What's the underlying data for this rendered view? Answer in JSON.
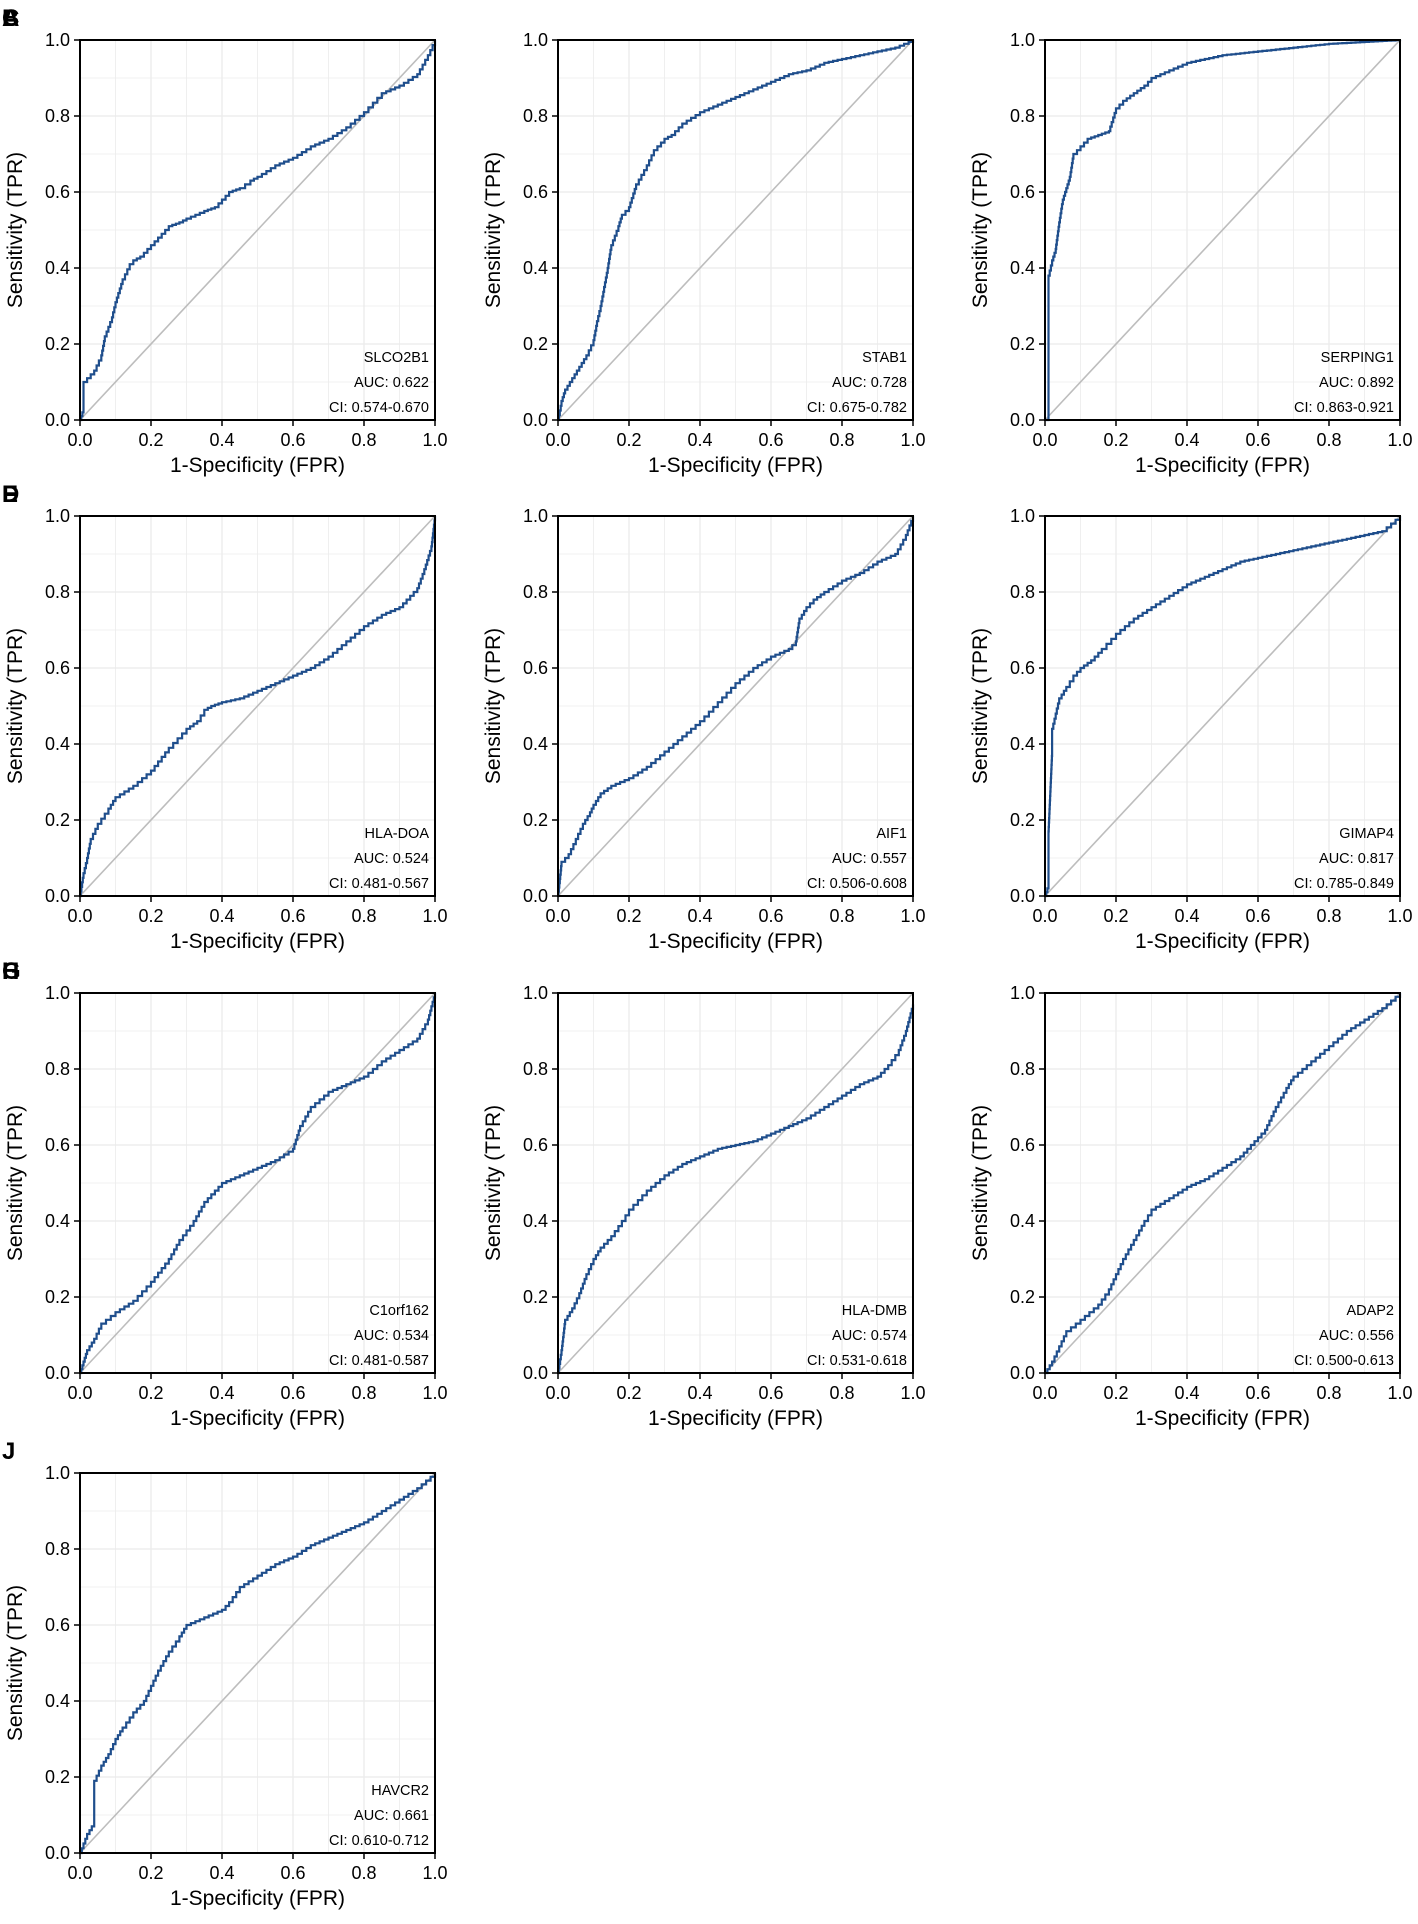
{
  "figure": {
    "type": "roc_grid",
    "colors": {
      "roc": "#1f4e8c",
      "diagonal": "#bdbdbd",
      "grid": "#ebebeb",
      "frame": "#000000"
    }
  },
  "chart_data": [
    {
      "panel": "A",
      "type": "line",
      "title": "SLCO2B1",
      "auc_label": "AUC: 0.622",
      "ci_label": "CI: 0.574-0.670",
      "xlabel": "1-Specificity (FPR)",
      "ylabel": "Sensitivity (TPR)",
      "xlim": [
        0,
        1
      ],
      "ylim": [
        0,
        1
      ],
      "x_ticks": [
        "0.0",
        "0.2",
        "0.4",
        "0.6",
        "0.8",
        "1.0"
      ],
      "y_ticks": [
        "0.0",
        "0.2",
        "0.4",
        "0.6",
        "0.8",
        "1.0"
      ],
      "series": [
        {
          "name": "ROC",
          "x": [
            0,
            0.01,
            0.01,
            0.04,
            0.06,
            0.07,
            0.09,
            0.1,
            0.12,
            0.14,
            0.15,
            0.17,
            0.2,
            0.22,
            0.25,
            0.28,
            0.3,
            0.35,
            0.38,
            0.4,
            0.42,
            0.45,
            0.48,
            0.5,
            0.55,
            0.6,
            0.65,
            0.7,
            0.75,
            0.8,
            0.85,
            0.9,
            0.95,
            0.98,
            1.0
          ],
          "y": [
            0,
            0.03,
            0.1,
            0.13,
            0.17,
            0.22,
            0.27,
            0.31,
            0.37,
            0.41,
            0.42,
            0.43,
            0.46,
            0.48,
            0.51,
            0.52,
            0.53,
            0.55,
            0.56,
            0.58,
            0.6,
            0.61,
            0.63,
            0.64,
            0.67,
            0.69,
            0.72,
            0.74,
            0.77,
            0.81,
            0.86,
            0.88,
            0.91,
            0.96,
            1.0
          ]
        },
        {
          "name": "Reference",
          "x": [
            0,
            1
          ],
          "y": [
            0,
            1
          ]
        }
      ]
    },
    {
      "panel": "B",
      "type": "line",
      "title": "STAB1",
      "auc_label": "AUC: 0.728",
      "ci_label": "CI: 0.675-0.782",
      "xlabel": "1-Specificity (FPR)",
      "ylabel": "Sensitivity (TPR)",
      "xlim": [
        0,
        1
      ],
      "ylim": [
        0,
        1
      ],
      "x_ticks": [
        "0.0",
        "0.2",
        "0.4",
        "0.6",
        "0.8",
        "1.0"
      ],
      "y_ticks": [
        "0.0",
        "0.2",
        "0.4",
        "0.6",
        "0.8",
        "1.0"
      ],
      "series": [
        {
          "name": "ROC",
          "x": [
            0,
            0.01,
            0.02,
            0.04,
            0.06,
            0.08,
            0.1,
            0.11,
            0.12,
            0.13,
            0.14,
            0.15,
            0.17,
            0.18,
            0.2,
            0.22,
            0.25,
            0.27,
            0.3,
            0.32,
            0.35,
            0.4,
            0.45,
            0.5,
            0.55,
            0.6,
            0.65,
            0.7,
            0.75,
            0.8,
            0.85,
            0.9,
            0.95,
            1.0
          ],
          "y": [
            0,
            0.05,
            0.08,
            0.11,
            0.14,
            0.17,
            0.21,
            0.26,
            0.3,
            0.35,
            0.4,
            0.46,
            0.51,
            0.54,
            0.56,
            0.62,
            0.67,
            0.71,
            0.74,
            0.75,
            0.78,
            0.81,
            0.83,
            0.85,
            0.87,
            0.89,
            0.91,
            0.92,
            0.94,
            0.95,
            0.96,
            0.97,
            0.98,
            1.0
          ]
        },
        {
          "name": "Reference",
          "x": [
            0,
            1
          ],
          "y": [
            0,
            1
          ]
        }
      ]
    },
    {
      "panel": "C",
      "type": "line",
      "title": "SERPING1",
      "auc_label": "AUC: 0.892",
      "ci_label": "CI: 0.863-0.921",
      "xlabel": "1-Specificity (FPR)",
      "ylabel": "Sensitivity (TPR)",
      "xlim": [
        0,
        1
      ],
      "ylim": [
        0,
        1
      ],
      "x_ticks": [
        "0.0",
        "0.2",
        "0.4",
        "0.6",
        "0.8",
        "1.0"
      ],
      "y_ticks": [
        "0.0",
        "0.2",
        "0.4",
        "0.6",
        "0.8",
        "1.0"
      ],
      "series": [
        {
          "name": "ROC",
          "x": [
            0,
            0.01,
            0.01,
            0.02,
            0.03,
            0.04,
            0.05,
            0.06,
            0.07,
            0.08,
            0.09,
            0.1,
            0.12,
            0.15,
            0.18,
            0.2,
            0.22,
            0.25,
            0.28,
            0.3,
            0.35,
            0.4,
            0.45,
            0.5,
            0.6,
            0.7,
            0.8,
            0.9,
            1.0
          ],
          "y": [
            0,
            0.01,
            0.38,
            0.42,
            0.45,
            0.52,
            0.58,
            0.61,
            0.64,
            0.7,
            0.71,
            0.72,
            0.74,
            0.75,
            0.76,
            0.82,
            0.84,
            0.86,
            0.88,
            0.9,
            0.92,
            0.94,
            0.95,
            0.96,
            0.97,
            0.98,
            0.99,
            0.995,
            1.0
          ]
        },
        {
          "name": "Reference",
          "x": [
            0,
            1
          ],
          "y": [
            0,
            1
          ]
        }
      ]
    },
    {
      "panel": "D",
      "type": "line",
      "title": "HLA-DOA",
      "auc_label": "AUC: 0.524",
      "ci_label": "CI: 0.481-0.567",
      "xlabel": "1-Specificity (FPR)",
      "ylabel": "Sensitivity (TPR)",
      "xlim": [
        0,
        1
      ],
      "ylim": [
        0,
        1
      ],
      "x_ticks": [
        "0.0",
        "0.2",
        "0.4",
        "0.6",
        "0.8",
        "1.0"
      ],
      "y_ticks": [
        "0.0",
        "0.2",
        "0.4",
        "0.6",
        "0.8",
        "1.0"
      ],
      "series": [
        {
          "name": "ROC",
          "x": [
            0,
            0.01,
            0.02,
            0.03,
            0.05,
            0.08,
            0.1,
            0.15,
            0.2,
            0.25,
            0.3,
            0.33,
            0.35,
            0.37,
            0.4,
            0.45,
            0.5,
            0.55,
            0.6,
            0.65,
            0.7,
            0.75,
            0.8,
            0.85,
            0.9,
            0.93,
            0.95,
            0.97,
            0.99,
            1.0
          ],
          "y": [
            0,
            0.06,
            0.1,
            0.15,
            0.19,
            0.23,
            0.26,
            0.29,
            0.33,
            0.39,
            0.44,
            0.46,
            0.49,
            0.5,
            0.51,
            0.52,
            0.54,
            0.56,
            0.58,
            0.6,
            0.63,
            0.67,
            0.71,
            0.74,
            0.76,
            0.79,
            0.81,
            0.86,
            0.92,
            1.0
          ]
        },
        {
          "name": "Reference",
          "x": [
            0,
            1
          ],
          "y": [
            0,
            1
          ]
        }
      ]
    },
    {
      "panel": "E",
      "type": "line",
      "title": "AIF1",
      "auc_label": "AUC: 0.557",
      "ci_label": "CI: 0.506-0.608",
      "xlabel": "1-Specificity (FPR)",
      "ylabel": "Sensitivity (TPR)",
      "xlim": [
        0,
        1
      ],
      "ylim": [
        0,
        1
      ],
      "x_ticks": [
        "0.0",
        "0.2",
        "0.4",
        "0.6",
        "0.8",
        "1.0"
      ],
      "y_ticks": [
        "0.0",
        "0.2",
        "0.4",
        "0.6",
        "0.8",
        "1.0"
      ],
      "series": [
        {
          "name": "ROC",
          "x": [
            0,
            0.01,
            0.03,
            0.05,
            0.07,
            0.09,
            0.1,
            0.12,
            0.15,
            0.2,
            0.25,
            0.3,
            0.35,
            0.4,
            0.45,
            0.5,
            0.55,
            0.6,
            0.65,
            0.67,
            0.68,
            0.7,
            0.72,
            0.75,
            0.8,
            0.85,
            0.9,
            0.95,
            0.98,
            1.0
          ],
          "y": [
            0,
            0.09,
            0.11,
            0.15,
            0.19,
            0.22,
            0.24,
            0.27,
            0.29,
            0.31,
            0.34,
            0.38,
            0.42,
            0.46,
            0.51,
            0.56,
            0.6,
            0.63,
            0.65,
            0.67,
            0.73,
            0.76,
            0.78,
            0.8,
            0.83,
            0.85,
            0.88,
            0.9,
            0.95,
            1.0
          ]
        },
        {
          "name": "Reference",
          "x": [
            0,
            1
          ],
          "y": [
            0,
            1
          ]
        }
      ]
    },
    {
      "panel": "F",
      "type": "line",
      "title": "GIMAP4",
      "auc_label": "AUC: 0.817",
      "ci_label": "CI: 0.785-0.849",
      "xlabel": "1-Specificity (FPR)",
      "ylabel": "Sensitivity (TPR)",
      "xlim": [
        0,
        1
      ],
      "ylim": [
        0,
        1
      ],
      "x_ticks": [
        "0.0",
        "0.2",
        "0.4",
        "0.6",
        "0.8",
        "1.0"
      ],
      "y_ticks": [
        "0.0",
        "0.2",
        "0.4",
        "0.6",
        "0.8",
        "1.0"
      ],
      "series": [
        {
          "name": "ROC",
          "x": [
            0,
            0.01,
            0.01,
            0.02,
            0.02,
            0.03,
            0.04,
            0.06,
            0.08,
            0.1,
            0.13,
            0.16,
            0.2,
            0.25,
            0.3,
            0.35,
            0.4,
            0.45,
            0.5,
            0.55,
            0.6,
            0.65,
            0.7,
            0.75,
            0.8,
            0.85,
            0.9,
            0.95,
            1.0
          ],
          "y": [
            0,
            0.03,
            0.17,
            0.38,
            0.44,
            0.48,
            0.52,
            0.55,
            0.58,
            0.6,
            0.62,
            0.65,
            0.69,
            0.73,
            0.76,
            0.79,
            0.82,
            0.84,
            0.86,
            0.88,
            0.89,
            0.9,
            0.91,
            0.92,
            0.93,
            0.94,
            0.95,
            0.96,
            1.0
          ]
        },
        {
          "name": "Reference",
          "x": [
            0,
            1
          ],
          "y": [
            0,
            1
          ]
        }
      ]
    },
    {
      "panel": "G",
      "type": "line",
      "title": "C1orf162",
      "auc_label": "AUC: 0.534",
      "ci_label": "CI: 0.481-0.587",
      "xlabel": "1-Specificity (FPR)",
      "ylabel": "Sensitivity (TPR)",
      "xlim": [
        0,
        1
      ],
      "ylim": [
        0,
        1
      ],
      "x_ticks": [
        "0.0",
        "0.2",
        "0.4",
        "0.6",
        "0.8",
        "1.0"
      ],
      "y_ticks": [
        "0.0",
        "0.2",
        "0.4",
        "0.6",
        "0.8",
        "1.0"
      ],
      "series": [
        {
          "name": "ROC",
          "x": [
            0,
            0.01,
            0.02,
            0.04,
            0.06,
            0.1,
            0.15,
            0.2,
            0.25,
            0.28,
            0.32,
            0.35,
            0.38,
            0.4,
            0.45,
            0.5,
            0.55,
            0.6,
            0.62,
            0.65,
            0.7,
            0.75,
            0.8,
            0.85,
            0.9,
            0.95,
            0.98,
            1.0
          ],
          "y": [
            0,
            0.03,
            0.06,
            0.09,
            0.13,
            0.16,
            0.19,
            0.24,
            0.3,
            0.35,
            0.4,
            0.45,
            0.48,
            0.5,
            0.52,
            0.54,
            0.56,
            0.59,
            0.65,
            0.7,
            0.74,
            0.76,
            0.78,
            0.82,
            0.85,
            0.88,
            0.93,
            1.0
          ]
        },
        {
          "name": "Reference",
          "x": [
            0,
            1
          ],
          "y": [
            0,
            1
          ]
        }
      ]
    },
    {
      "panel": "H",
      "type": "line",
      "title": "HLA-DMB",
      "auc_label": "AUC: 0.574",
      "ci_label": "CI: 0.531-0.618",
      "xlabel": "1-Specificity (FPR)",
      "ylabel": "Sensitivity (TPR)",
      "xlim": [
        0,
        1
      ],
      "ylim": [
        0,
        1
      ],
      "x_ticks": [
        "0.0",
        "0.2",
        "0.4",
        "0.6",
        "0.8",
        "1.0"
      ],
      "y_ticks": [
        "0.0",
        "0.2",
        "0.4",
        "0.6",
        "0.8",
        "1.0"
      ],
      "series": [
        {
          "name": "ROC",
          "x": [
            0,
            0.01,
            0.02,
            0.04,
            0.06,
            0.08,
            0.1,
            0.12,
            0.15,
            0.18,
            0.2,
            0.25,
            0.3,
            0.35,
            0.4,
            0.45,
            0.5,
            0.55,
            0.6,
            0.65,
            0.7,
            0.75,
            0.8,
            0.85,
            0.9,
            0.93,
            0.96,
            0.98,
            1.0
          ],
          "y": [
            0,
            0.06,
            0.14,
            0.17,
            0.21,
            0.26,
            0.3,
            0.33,
            0.36,
            0.4,
            0.43,
            0.48,
            0.52,
            0.55,
            0.57,
            0.59,
            0.6,
            0.61,
            0.63,
            0.65,
            0.67,
            0.7,
            0.73,
            0.76,
            0.78,
            0.81,
            0.85,
            0.9,
            0.97
          ]
        },
        {
          "name": "Reference",
          "x": [
            0,
            1
          ],
          "y": [
            0,
            1
          ]
        }
      ]
    },
    {
      "panel": "I",
      "type": "line",
      "title": "ADAP2",
      "auc_label": "AUC: 0.556",
      "ci_label": "CI: 0.500-0.613",
      "xlabel": "1-Specificity (FPR)",
      "ylabel": "Sensitivity (TPR)",
      "xlim": [
        0,
        1
      ],
      "ylim": [
        0,
        1
      ],
      "x_ticks": [
        "0.0",
        "0.2",
        "0.4",
        "0.6",
        "0.8",
        "1.0"
      ],
      "y_ticks": [
        "0.0",
        "0.2",
        "0.4",
        "0.6",
        "0.8",
        "1.0"
      ],
      "series": [
        {
          "name": "ROC",
          "x": [
            0,
            0.02,
            0.04,
            0.06,
            0.1,
            0.15,
            0.18,
            0.2,
            0.22,
            0.25,
            0.28,
            0.3,
            0.35,
            0.4,
            0.45,
            0.5,
            0.55,
            0.58,
            0.6,
            0.62,
            0.65,
            0.68,
            0.7,
            0.75,
            0.8,
            0.85,
            0.9,
            0.95,
            1.0
          ],
          "y": [
            0,
            0.03,
            0.07,
            0.11,
            0.14,
            0.18,
            0.22,
            0.26,
            0.3,
            0.35,
            0.4,
            0.43,
            0.46,
            0.49,
            0.51,
            0.54,
            0.57,
            0.6,
            0.62,
            0.64,
            0.7,
            0.75,
            0.78,
            0.82,
            0.86,
            0.9,
            0.93,
            0.96,
            1.0
          ]
        },
        {
          "name": "Reference",
          "x": [
            0,
            1
          ],
          "y": [
            0,
            1
          ]
        }
      ]
    },
    {
      "panel": "J",
      "type": "line",
      "title": "HAVCR2",
      "auc_label": "AUC: 0.661",
      "ci_label": "CI: 0.610-0.712",
      "xlabel": "1-Specificity (FPR)",
      "ylabel": "Sensitivity (TPR)",
      "xlim": [
        0,
        1
      ],
      "ylim": [
        0,
        1
      ],
      "x_ticks": [
        "0.0",
        "0.2",
        "0.4",
        "0.6",
        "0.8",
        "1.0"
      ],
      "y_ticks": [
        "0.0",
        "0.2",
        "0.4",
        "0.6",
        "0.8",
        "1.0"
      ],
      "series": [
        {
          "name": "ROC",
          "x": [
            0,
            0.02,
            0.04,
            0.04,
            0.06,
            0.08,
            0.1,
            0.12,
            0.15,
            0.18,
            0.2,
            0.22,
            0.25,
            0.28,
            0.3,
            0.35,
            0.4,
            0.42,
            0.45,
            0.5,
            0.55,
            0.6,
            0.65,
            0.7,
            0.75,
            0.8,
            0.85,
            0.9,
            0.95,
            1.0
          ],
          "y": [
            0,
            0.05,
            0.08,
            0.19,
            0.23,
            0.26,
            0.3,
            0.33,
            0.37,
            0.4,
            0.44,
            0.48,
            0.53,
            0.57,
            0.6,
            0.62,
            0.64,
            0.66,
            0.7,
            0.73,
            0.76,
            0.78,
            0.81,
            0.83,
            0.85,
            0.87,
            0.9,
            0.93,
            0.96,
            1.0
          ]
        },
        {
          "name": "Reference",
          "x": [
            0,
            1
          ],
          "y": [
            0,
            1
          ]
        }
      ]
    }
  ]
}
